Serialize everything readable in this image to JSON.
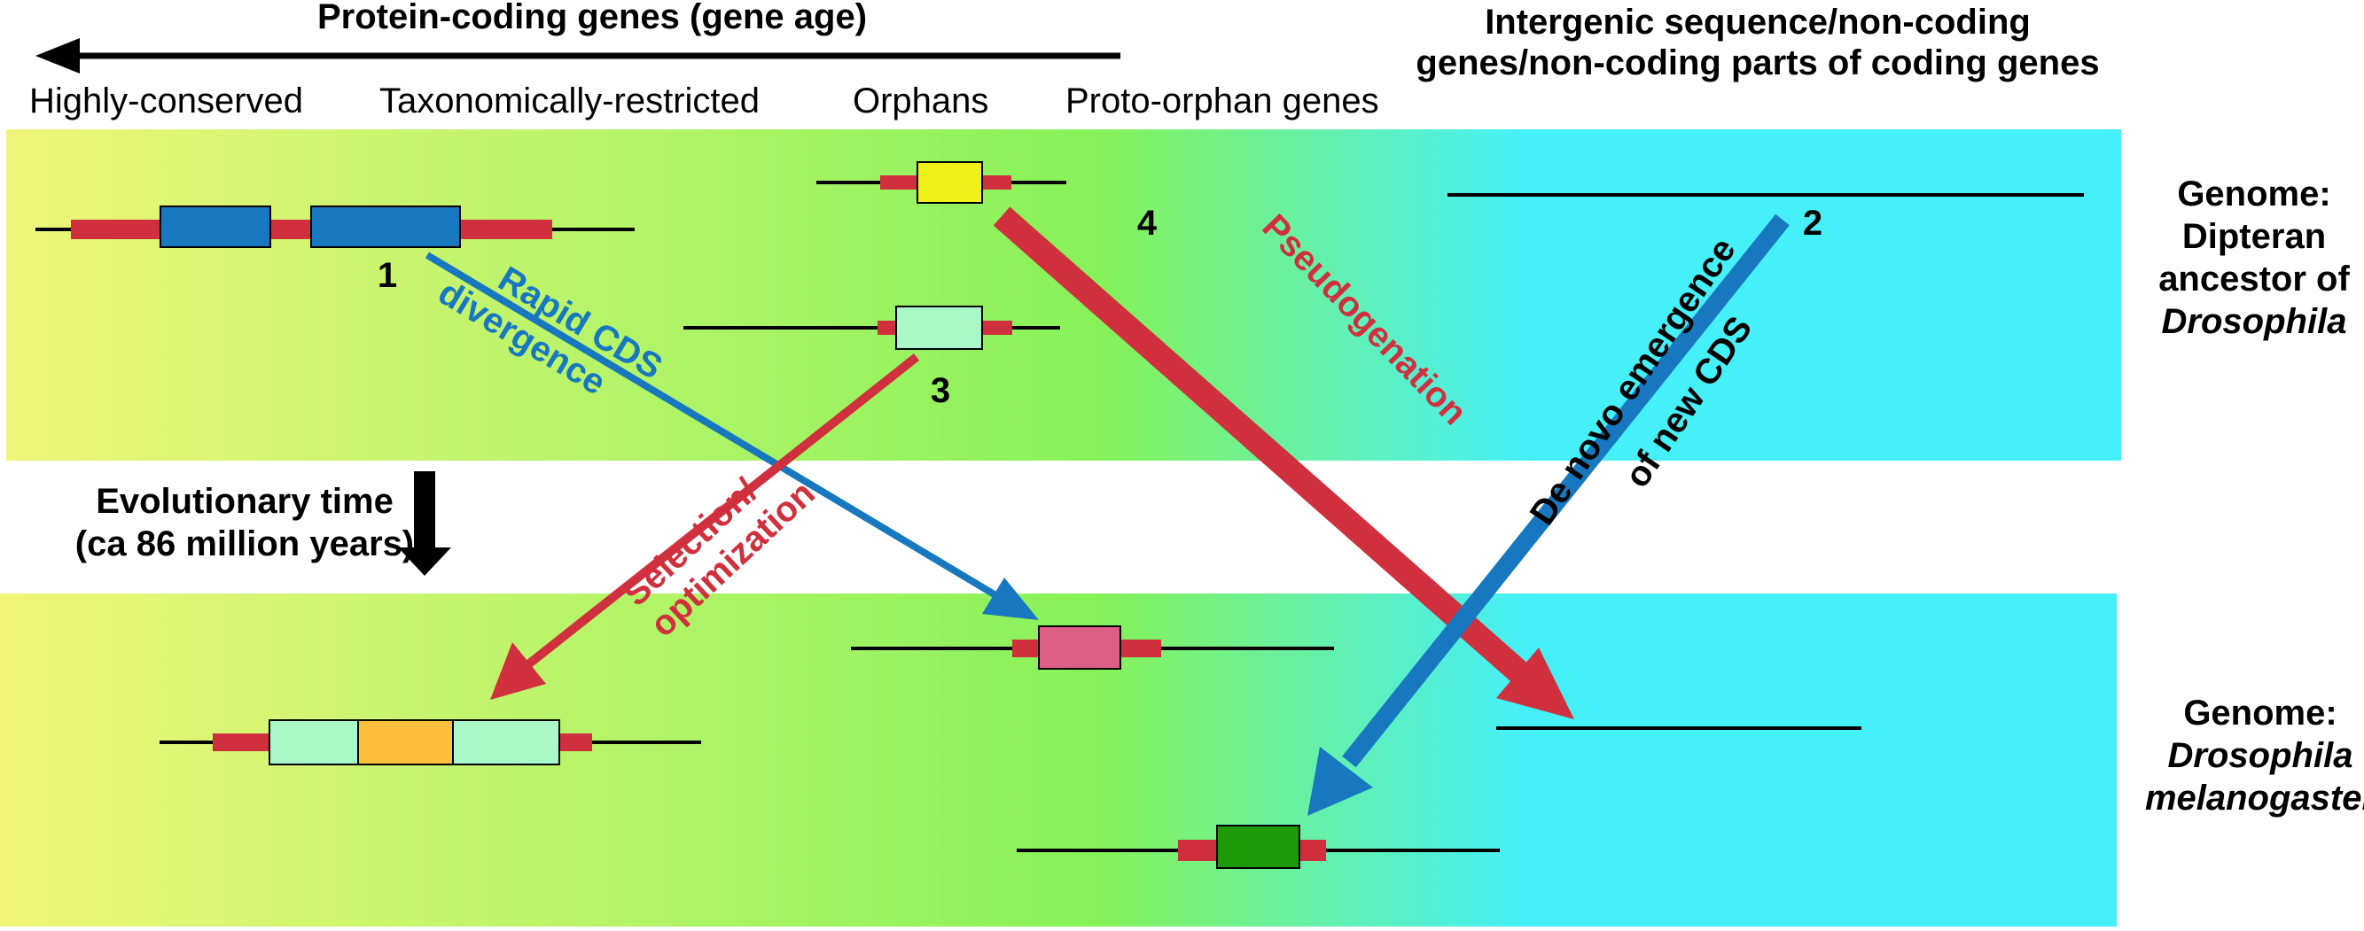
{
  "header": {
    "protein_coding": "Protein-coding genes (gene age)",
    "intergenic_line1": "Intergenic sequence/non-coding",
    "intergenic_line2": "genes/non-coding parts of coding genes"
  },
  "columns": {
    "highly_conserved": "Highly-conserved",
    "taxonomically_restricted": "Taxonomically-restricted",
    "orphans": "Orphans",
    "proto_orphan": "Proto-orphan genes"
  },
  "time_axis": {
    "line1": "Evolutionary time",
    "line2": "(ca 86 million years)"
  },
  "genomes": {
    "ancestor_line1": "Genome:",
    "ancestor_line2": "Dipteran",
    "ancestor_line3": "ancestor of",
    "ancestor_line4": "Drosophila",
    "modern_line1": "Genome:",
    "modern_line2": "Drosophila",
    "modern_line3": "melanogaster"
  },
  "numbers": {
    "n1": "1",
    "n2": "2",
    "n3": "3",
    "n4": "4"
  },
  "processes": {
    "rapid_line1": "Rapid CDS",
    "rapid_line2": "divergence",
    "selection_line1": "Selection/",
    "selection_line2": "optimization",
    "pseudogenation": "Pseudogenation",
    "denovo_line1": "De novo emergence",
    "denovo_line2": "of  new CDS"
  },
  "colors": {
    "gradient_left": "#f0f67a",
    "gradient_mid": "#86f25a",
    "gradient_right": "#46f0f8",
    "utr_red": "#d0303d",
    "arrow_red": "#d0303d",
    "arrow_blue": "#1778bf",
    "cds_blue": "#1778bf",
    "cds_yellow": "#f0f01a",
    "cds_mint": "#aaf7c8",
    "cds_orange": "#fbbf3c",
    "cds_pink": "#dd5f86",
    "cds_green": "#1e9a08"
  }
}
